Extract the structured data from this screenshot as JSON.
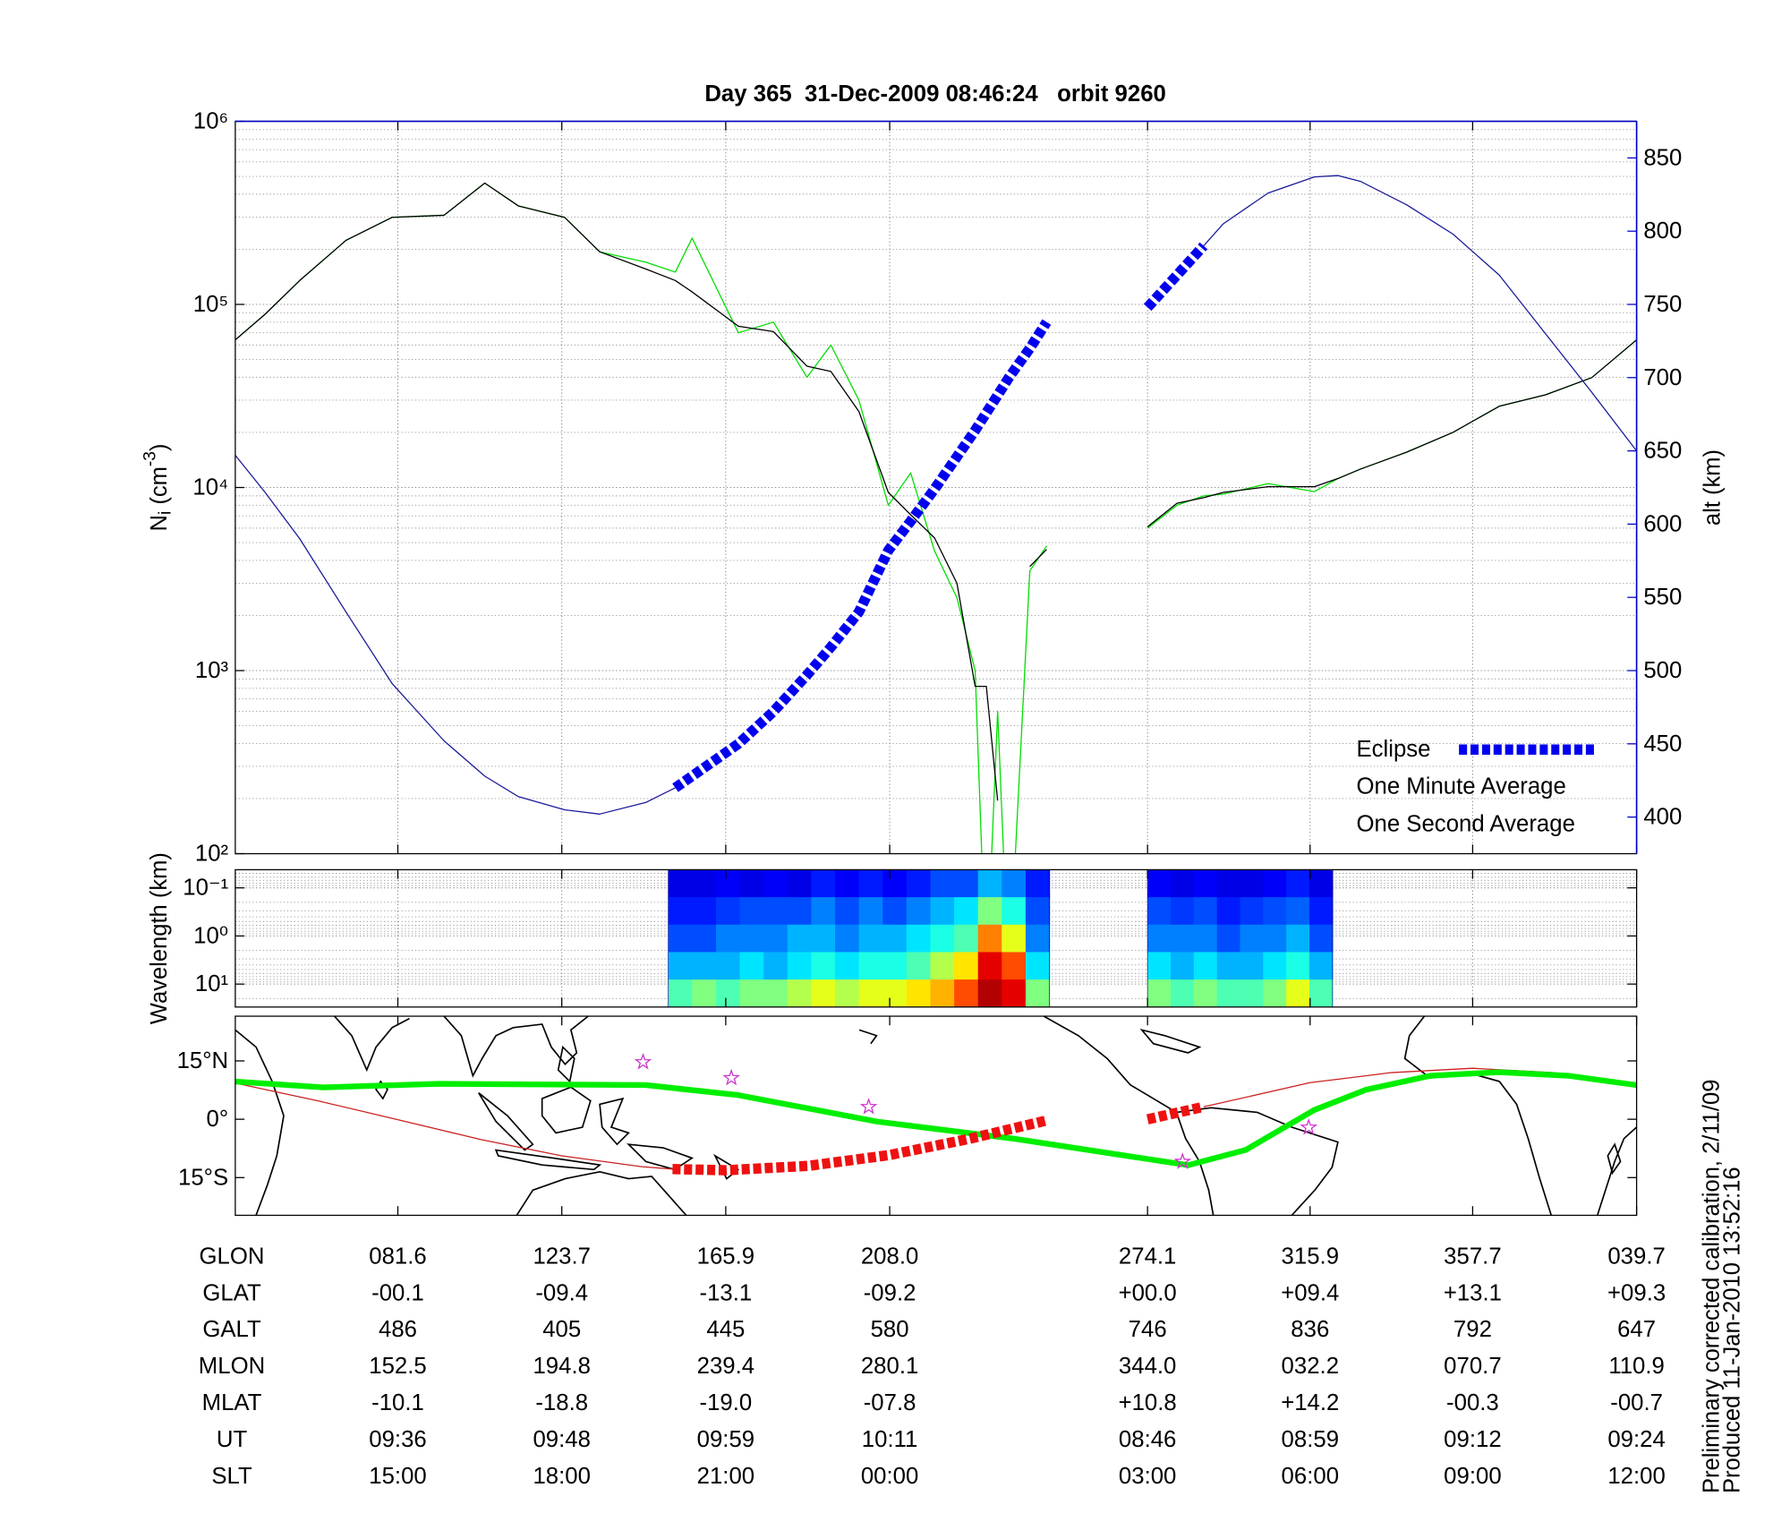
{
  "chart_data": [
    {
      "type": "line",
      "title": "Day 365  31-Dec-2009 08:46:24   orbit 9260",
      "ylabel": [
        "N",
        "i",
        " (cm",
        "-3",
        ")"
      ],
      "y2label": "alt (km)",
      "x": [
        0,
        2.1,
        4.6,
        7.9,
        11.2,
        14.9,
        17.8,
        20.2,
        23.5,
        26.0,
        29.3,
        31.4,
        32.6,
        35.9,
        38.4,
        40.8,
        42.5,
        44.5,
        46.6,
        48.2,
        49.9,
        51.5,
        52.8,
        53.6,
        54.4,
        55.2,
        56.7,
        57.9,
        61.4,
        65.1,
        67.2,
        69.1,
        70.5,
        73.7,
        77.0,
        78.7,
        80.3,
        83.6,
        86.9,
        90.2,
        93.5,
        96.8,
        100
      ],
      "xlim": [
        0,
        100
      ],
      "xticks": [
        11.6,
        23.3,
        35.0,
        46.7,
        65.1,
        76.7,
        88.3,
        100
      ],
      "ylim": [
        100,
        1000000
      ],
      "yscale": "log",
      "yticks": [
        {
          "value": 100,
          "label": "10²"
        },
        {
          "value": 1000,
          "label": "10³"
        },
        {
          "value": 10000,
          "label": "10⁴"
        },
        {
          "value": 100000,
          "label": "10⁵"
        },
        {
          "value": 1000000,
          "label": "10⁶"
        }
      ],
      "y2lim": [
        375,
        875
      ],
      "y2ticks": [
        400,
        450,
        500,
        550,
        600,
        650,
        700,
        750,
        800,
        850
      ],
      "y2color": "#0000cc",
      "grid": true,
      "legend": "lower right",
      "series": [
        {
          "color": "#1a1a9a",
          "style": "solid",
          "axis": "y2",
          "values": [
            647,
            622,
            590,
            540,
            491,
            452,
            428,
            414,
            405,
            402,
            410,
            420,
            null,
            null,
            null,
            null,
            null,
            null,
            null,
            null,
            null,
            null,
            null,
            null,
            null,
            null,
            null,
            null,
            null,
            null,
            null,
            790,
            805,
            826,
            837,
            838,
            834,
            818,
            798,
            770,
            730,
            690,
            650
          ]
        },
        {
          "name": "Eclipse",
          "color": "#0000ee",
          "style": "bold-dashed",
          "axis": "y2",
          "values": [
            null,
            null,
            null,
            null,
            null,
            null,
            null,
            null,
            null,
            null,
            null,
            420,
            428,
            450,
            472,
            497,
            516,
            540,
            582,
            602,
            624,
            646,
            664,
            676,
            688,
            700,
            720,
            738,
            null,
            748,
            770,
            790,
            null,
            null,
            null,
            null,
            null,
            null,
            null,
            null,
            null,
            null,
            null
          ]
        },
        {
          "name": "One Minute Average",
          "color": "#000000",
          "style": "solid",
          "values": [
            64000,
            88000,
            135000,
            224000,
            299000,
            307000,
            460000,
            345000,
            299000,
            194000,
            156000,
            135000,
            117000,
            76000,
            71000,
            46000,
            43000,
            26000,
            9400,
            7100,
            5300,
            3000,
            820,
            820,
            195,
            null,
            3700,
            4600,
            null,
            6100,
            8200,
            8800,
            9400,
            10100,
            10100,
            11200,
            12600,
            15600,
            20000,
            27800,
            32100,
            39800,
            64000
          ]
        },
        {
          "name": "One Second Average",
          "color": "#00dd00",
          "style": "solid",
          "values": [
            64000,
            88000,
            135000,
            224000,
            299000,
            307000,
            460000,
            345000,
            299000,
            194000,
            170000,
            150000,
            230000,
            70000,
            80000,
            40000,
            60000,
            30000,
            8000,
            12000,
            4500,
            2500,
            1000,
            20,
            600,
            20,
            3500,
            4800,
            null,
            6000,
            8000,
            9000,
            9200,
            10500,
            9500,
            11200,
            12600,
            15600,
            20000,
            27800,
            32100,
            39800,
            64000
          ]
        }
      ]
    },
    {
      "type": "heatmap",
      "ylabel": "Wavelength (km)",
      "xlim": [
        0,
        100
      ],
      "xticks": [
        11.6,
        23.3,
        35.0,
        46.7,
        65.1,
        76.7,
        88.3,
        100
      ],
      "ylim": [
        0.042,
        30
      ],
      "yscale": "log",
      "yinverted": true,
      "yticks": [
        {
          "value": 0.1,
          "label": "10⁻¹"
        },
        {
          "value": 1,
          "label": "10⁰"
        },
        {
          "value": 10,
          "label": "10¹"
        }
      ],
      "grid": true,
      "colormap": "jet",
      "clim": [
        0,
        1
      ],
      "blocks": [
        {
          "x": [
            30.9,
            58.1
          ],
          "values": [
            [
              0.1,
              0.1,
              0.12,
              0.1,
              0.12,
              0.1,
              0.15,
              0.12,
              0.15,
              0.12,
              0.15,
              0.2,
              0.2,
              0.3,
              0.25,
              0.15
            ],
            [
              0.15,
              0.15,
              0.18,
              0.2,
              0.2,
              0.2,
              0.25,
              0.2,
              0.25,
              0.2,
              0.25,
              0.3,
              0.35,
              0.5,
              0.4,
              0.2
            ],
            [
              0.2,
              0.2,
              0.25,
              0.25,
              0.25,
              0.3,
              0.3,
              0.25,
              0.3,
              0.3,
              0.35,
              0.4,
              0.45,
              0.75,
              0.6,
              0.25
            ],
            [
              0.3,
              0.3,
              0.3,
              0.35,
              0.3,
              0.35,
              0.4,
              0.35,
              0.4,
              0.4,
              0.45,
              0.55,
              0.65,
              0.9,
              0.8,
              0.35
            ],
            [
              0.45,
              0.5,
              0.45,
              0.5,
              0.5,
              0.55,
              0.6,
              0.55,
              0.6,
              0.6,
              0.65,
              0.7,
              0.8,
              0.95,
              0.9,
              0.5
            ]
          ]
        },
        {
          "x": [
            65.1,
            78.3
          ],
          "values": [
            [
              0.12,
              0.1,
              0.12,
              0.1,
              0.1,
              0.12,
              0.15,
              0.1
            ],
            [
              0.2,
              0.18,
              0.2,
              0.15,
              0.18,
              0.2,
              0.22,
              0.15
            ],
            [
              0.25,
              0.25,
              0.25,
              0.2,
              0.25,
              0.25,
              0.3,
              0.2
            ],
            [
              0.35,
              0.3,
              0.35,
              0.3,
              0.3,
              0.35,
              0.4,
              0.3
            ],
            [
              0.5,
              0.45,
              0.5,
              0.45,
              0.45,
              0.5,
              0.6,
              0.45
            ]
          ]
        }
      ]
    },
    {
      "type": "map",
      "xlim": [
        0,
        100
      ],
      "xticks": [
        11.6,
        23.3,
        35.0,
        46.7,
        65.1,
        76.7,
        88.3,
        100
      ],
      "ylim": [
        -24.7,
        26.5
      ],
      "yticks": [
        {
          "value": 15,
          "label": "15°N"
        },
        {
          "value": 0,
          "label": "0°"
        },
        {
          "value": -15,
          "label": "15°S"
        }
      ],
      "lines": [
        {
          "color": "#cc2020",
          "style": "solid",
          "x": [
            0,
            5.8,
            11.6,
            17.5,
            23.3,
            29.0,
            31.2,
            61.4,
            69.1,
            76.7,
            82.5,
            88.3,
            94.0,
            100
          ],
          "values": [
            9.3,
            4.8,
            -0.1,
            -5.2,
            -9.4,
            -12.2,
            -12.8,
            null,
            3.2,
            9.4,
            12.0,
            13.1,
            12.0,
            9.3
          ]
        },
        {
          "color": "#00ee00",
          "style": "bold",
          "x": [
            0,
            6.3,
            14.5,
            29.3,
            35.9,
            45.8,
            55.6,
            68.0,
            72.1,
            77.0,
            80.7,
            85.3,
            90.2,
            95.1,
            100
          ],
          "values": [
            9.7,
            8.2,
            9.1,
            8.8,
            6.2,
            -0.6,
            -5.0,
            -11.8,
            -7.9,
            2.4,
            7.6,
            11.2,
            12.1,
            11.2,
            8.8
          ]
        },
        {
          "color": "#ee1111",
          "style": "bold-dashed",
          "x": [
            31.2,
            35.0,
            40.9,
            46.7,
            52.4,
            57.9,
            61.4,
            65.1,
            69.1
          ],
          "values": [
            -12.8,
            -13.1,
            -12.0,
            -9.2,
            -5.0,
            -0.3,
            null,
            0.0,
            3.2
          ]
        }
      ],
      "markers": {
        "color": "#cc33cc",
        "marker": "star",
        "x": [
          29.1,
          35.4,
          45.2,
          67.6,
          76.6
        ],
        "values": [
          14.7,
          10.6,
          3.2,
          -10.9,
          -2.1
        ]
      }
    }
  ],
  "table": {
    "rows": [
      {
        "label": "GLON",
        "values": [
          "081.6",
          "123.7",
          "165.9",
          "208.0",
          "274.1",
          "315.9",
          "357.7",
          "039.7"
        ]
      },
      {
        "label": "GLAT",
        "values": [
          "-00.1",
          "-09.4",
          "-13.1",
          "-09.2",
          "+00.0",
          "+09.4",
          "+13.1",
          "+09.3"
        ]
      },
      {
        "label": "GALT",
        "values": [
          "486",
          "405",
          "445",
          "580",
          "746",
          "836",
          "792",
          "647"
        ]
      },
      {
        "label": "MLON",
        "values": [
          "152.5",
          "194.8",
          "239.4",
          "280.1",
          "344.0",
          "032.2",
          "070.7",
          "110.9"
        ]
      },
      {
        "label": "MLAT",
        "values": [
          "-10.1",
          "-18.8",
          "-19.0",
          "-07.8",
          "+10.8",
          "+14.2",
          "-00.3",
          "-00.7"
        ]
      },
      {
        "label": "UT",
        "values": [
          "09:36",
          "09:48",
          "09:59",
          "10:11",
          "08:46",
          "08:59",
          "09:12",
          "09:24"
        ]
      },
      {
        "label": "SLT",
        "values": [
          "15:00",
          "18:00",
          "21:00",
          "00:00",
          "03:00",
          "06:00",
          "09:00",
          "12:00"
        ]
      }
    ]
  },
  "notes": [
    "Preliminary corrected calibration, 2/11/09",
    "Produced 11-Jan-2010 13:52:16"
  ]
}
